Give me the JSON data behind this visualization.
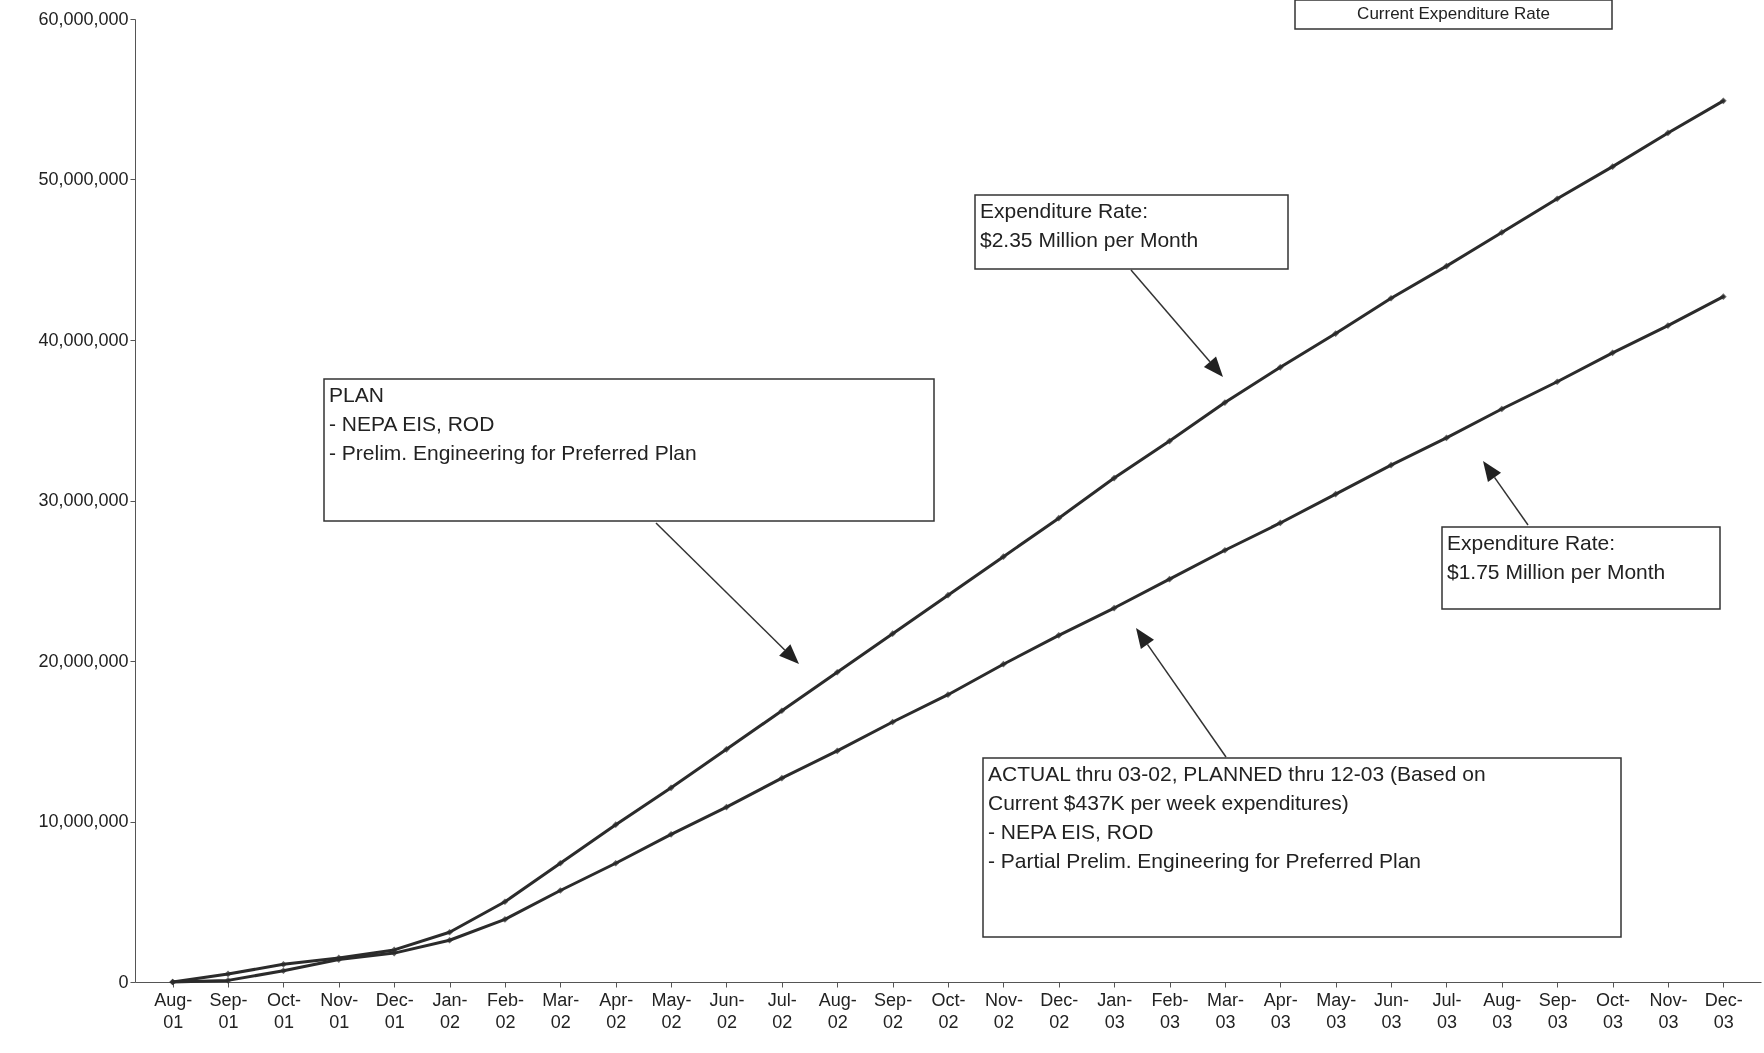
{
  "chart_data": {
    "type": "line",
    "categories": [
      "Aug-01",
      "Sep-01",
      "Oct-01",
      "Nov-01",
      "Dec-01",
      "Jan-02",
      "Feb-02",
      "Mar-02",
      "Apr-02",
      "May-02",
      "Jun-02",
      "Jul-02",
      "Aug-02",
      "Sep-02",
      "Oct-02",
      "Nov-02",
      "Dec-02",
      "Jan-03",
      "Feb-03",
      "Mar-03",
      "Apr-03",
      "May-03",
      "Jun-03",
      "Jul-03",
      "Aug-03",
      "Sep-03",
      "Oct-03",
      "Nov-03",
      "Dec-03"
    ],
    "series": [
      {
        "color": "#2b2b2b",
        "values": [
          0,
          500000,
          1100000,
          1500000,
          2000000,
          3100000,
          5000000,
          7400000,
          9800000,
          12100000,
          14500000,
          16900000,
          19300000,
          21700000,
          24100000,
          26500000,
          28900000,
          31400000,
          33700000,
          36100000,
          38300000,
          40400000,
          42600000,
          44600000,
          46700000,
          48800000,
          50800000,
          52900000,
          54900000
        ]
      },
      {
        "color": "#2b2b2b",
        "values": [
          0,
          100000,
          700000,
          1400000,
          1800000,
          2600000,
          3900000,
          5700000,
          7400000,
          9200000,
          10900000,
          12700000,
          14400000,
          16200000,
          17900000,
          19800000,
          21600000,
          23300000,
          25100000,
          26900000,
          28600000,
          30400000,
          32200000,
          33900000,
          35700000,
          37400000,
          39200000,
          40900000,
          42700000
        ]
      }
    ],
    "ylim": [
      0,
      60000000
    ],
    "yticks": [
      {
        "value": 0,
        "label": "0"
      },
      {
        "value": 10000000,
        "label": "10,000,000"
      },
      {
        "value": 20000000,
        "label": "20,000,000"
      },
      {
        "value": 30000000,
        "label": "30,000,000"
      },
      {
        "value": 40000000,
        "label": "40,000,000"
      },
      {
        "value": 50000000,
        "label": "50,000,000"
      },
      {
        "value": 60000000,
        "label": "60,000,000"
      }
    ],
    "marker": "diamond",
    "line_style": "solid",
    "annotations": [
      "Current Expenditure Rate",
      "PLAN\n - NEPA EIS, ROD\n - Prelim. Engineering for Preferred Plan",
      "Expenditure Rate:\n$2.35 Million per Month",
      "Expenditure Rate:\n$1.75 Million per Month",
      "ACTUAL thru 03-02, PLANNED thru 12-03 (Based on\nCurrent $437K per week expenditures)\n - NEPA EIS, ROD\n - Partial Prelim. Engineering for Preferred Plan"
    ]
  }
}
